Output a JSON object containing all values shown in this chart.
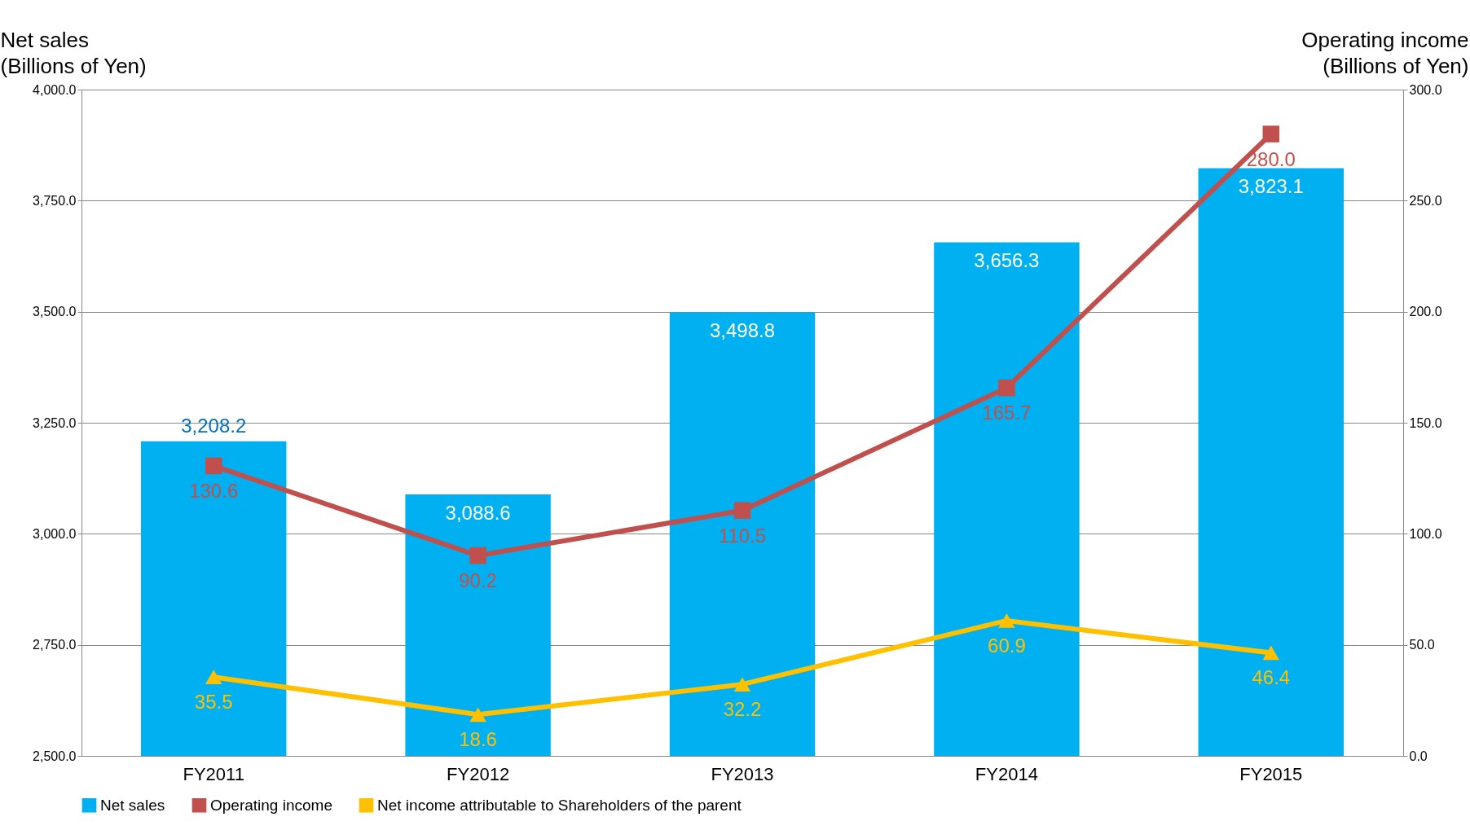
{
  "chart_data": {
    "type": "bar",
    "categories": [
      "FY2011",
      "FY2012",
      "FY2013",
      "FY2014",
      "FY2015"
    ],
    "ylabel": "Net sales\n(Billions of Yen)",
    "y2label": "Operating income\n(Billions of Yen)",
    "ylim": [
      2500,
      4000
    ],
    "yticks": [
      {
        "value": 2500,
        "label": "2,500.0"
      },
      {
        "value": 2750,
        "label": "2,750.0"
      },
      {
        "value": 3000,
        "label": "3,000.0"
      },
      {
        "value": 3250,
        "label": "3,250.0"
      },
      {
        "value": 3500,
        "label": "3,500.0"
      },
      {
        "value": 3750,
        "label": "3,750.0"
      },
      {
        "value": 4000,
        "label": "4,000.0"
      }
    ],
    "y2lim": [
      0,
      300
    ],
    "y2ticks": [
      {
        "value": 0,
        "label": "0.0"
      },
      {
        "value": 50,
        "label": "50.0"
      },
      {
        "value": 100,
        "label": "100.0"
      },
      {
        "value": 150,
        "label": "150.0"
      },
      {
        "value": 200,
        "label": "200.0"
      },
      {
        "value": 250,
        "label": "250.0"
      },
      {
        "value": 300,
        "label": "300.0"
      }
    ],
    "grid": "y",
    "legend": "bottom",
    "series": [
      {
        "name": "Net sales",
        "color": "#00b0f0",
        "values": [
          3208.2,
          3088.6,
          3498.8,
          3656.3,
          3823.1
        ],
        "value_labels": [
          "3,208.2",
          "3,088.6",
          "3,498.8",
          "3,656.3",
          "3,823.1"
        ]
      },
      {
        "name": "Operating income",
        "type": "line",
        "axis": "y2",
        "marker": "square",
        "color": "#c0504d",
        "values": [
          130.6,
          90.2,
          110.5,
          165.7,
          280.0
        ],
        "value_labels": [
          "130.6",
          "90.2",
          "110.5",
          "165.7",
          "280.0"
        ]
      },
      {
        "name": "Net income attributable to Shareholders of the parent",
        "type": "line",
        "axis": "y2",
        "marker": "triangle",
        "color": "#ffc000",
        "values": [
          35.5,
          18.6,
          32.2,
          60.9,
          46.4
        ],
        "value_labels": [
          "35.5",
          "18.6",
          "32.2",
          "60.9",
          "46.4"
        ]
      }
    ]
  }
}
